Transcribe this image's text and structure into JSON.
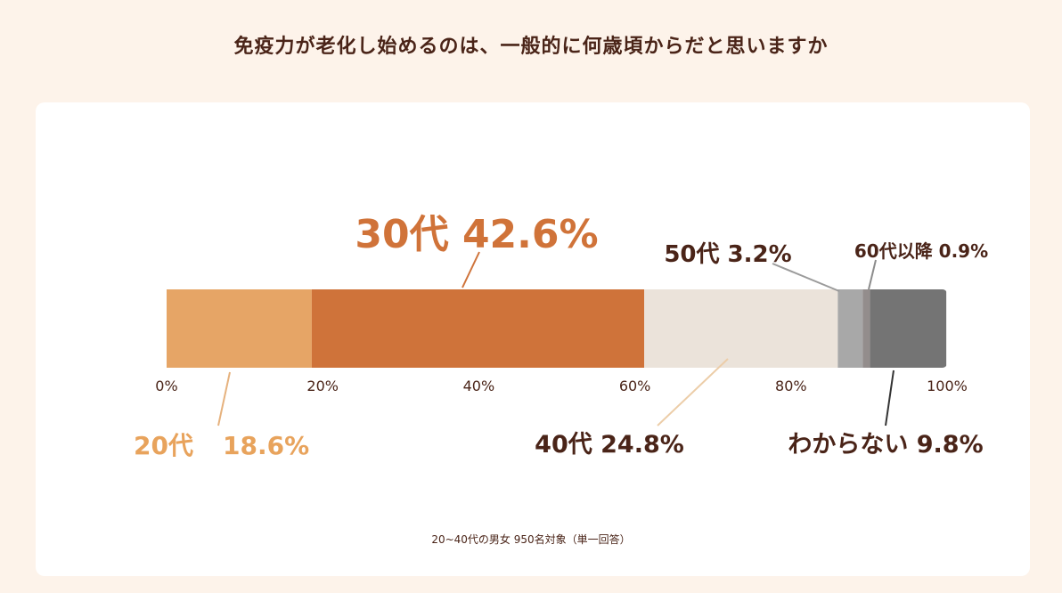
{
  "title": "免疫力が老化し始めるのは、一般的に何歳頃からだと思いますか",
  "note": "20~40代の男女 950名対象（単一回答）",
  "colors": {
    "background": "#fdf3ea",
    "card": "#ffffff",
    "text_dark": "#4a2418",
    "label_orange": "#d07339",
    "label_light_orange": "#e8a35c"
  },
  "chart_data": {
    "type": "bar",
    "orientation": "horizontal-stacked-100",
    "xlim": [
      0,
      100
    ],
    "ticks": [
      "0%",
      "20%",
      "40%",
      "60%",
      "80%",
      "100%"
    ],
    "grid": false,
    "series": [
      {
        "name": "20代",
        "value": 18.6,
        "label": "18.6%",
        "color": "#e6a566",
        "label_color": "#e8a35c"
      },
      {
        "name": "30代",
        "value": 42.6,
        "label": "42.6%",
        "color": "#cf733a",
        "label_color": "#d07339"
      },
      {
        "name": "40代",
        "value": 24.8,
        "label": "24.8%",
        "color": "#ebe3da",
        "label_color": "#4a2418"
      },
      {
        "name": "50代",
        "value": 3.2,
        "label": "3.2%",
        "color": "#a8a8a8",
        "label_color": "#4a2418"
      },
      {
        "name": "60代以降",
        "value": 0.9,
        "label": "0.9%",
        "color": "#938d8c",
        "label_color": "#4a2418"
      },
      {
        "name": "わからない",
        "value": 9.8,
        "label": "9.8%",
        "color": "#747474",
        "label_color": "#4a2418"
      }
    ]
  }
}
